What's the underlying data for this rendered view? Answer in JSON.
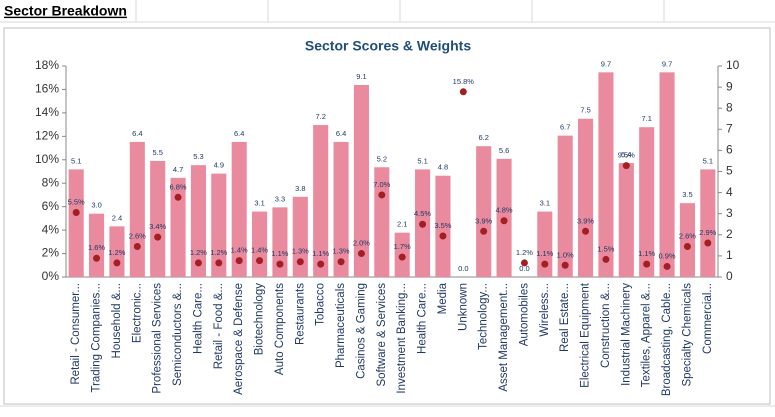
{
  "sheet_title": "Sector Breakdown",
  "chart_data": {
    "type": "bar-scatter",
    "title": "Sector Scores & Weights",
    "categories": [
      "Retail - Consumer...",
      "Trading Companies...",
      "Household &...",
      "Electronic...",
      "Professional Services",
      "Semiconductors &...",
      "Health Care...",
      "Retail - Food &...",
      "Aerospace & Defense",
      "Biotechnology",
      "Auto Components",
      "Restaurants",
      "Tobacco",
      "Pharmaceuticals",
      "Casinos & Gaming",
      "Software & Services",
      "Investment Banking...",
      "Health Care...",
      "Media",
      "Unknown",
      "Technology...",
      "Asset Management...",
      "Automobiles",
      "Wireless...",
      "Real Estate...",
      "Electrical Equipment",
      "Construction &...",
      "Industrial Machinery",
      "Textiles, Apparel &...",
      "Broadcasting, Cable...",
      "Specialty Chemicals",
      "Commercial..."
    ],
    "series": [
      {
        "type": "bar",
        "axis": "y2",
        "color": "#e98a9e",
        "values": [
          5.1,
          3.0,
          2.4,
          6.4,
          5.5,
          4.7,
          5.3,
          4.9,
          6.4,
          3.1,
          3.3,
          3.8,
          7.2,
          6.4,
          9.1,
          5.2,
          2.1,
          5.1,
          4.8,
          0.0,
          6.2,
          5.6,
          0.0,
          3.1,
          6.7,
          7.5,
          9.7,
          5.4,
          7.1,
          9.7,
          3.5,
          5.1
        ],
        "value_labels": [
          "5.1",
          "3.0",
          "2.4",
          "6.4",
          "5.5",
          "4.7",
          "5.3",
          "4.9",
          "6.4",
          "3.1",
          "3.3",
          "3.8",
          "7.2",
          "6.4",
          "9.1",
          "5.2",
          "2.1",
          "5.1",
          "4.8",
          "0.0",
          "6.2",
          "5.6",
          "0.0",
          "3.1",
          "6.7",
          "7.5",
          "9.7",
          "5.4",
          "7.1",
          "9.7",
          "3.5",
          "5.1"
        ]
      },
      {
        "type": "scatter",
        "axis": "y",
        "color": "#a31f24",
        "values": [
          5.5,
          1.6,
          1.2,
          2.6,
          3.4,
          6.8,
          1.2,
          1.2,
          1.4,
          1.4,
          1.1,
          1.3,
          1.1,
          1.3,
          2.0,
          7.0,
          1.7,
          4.5,
          3.5,
          15.8,
          3.9,
          4.8,
          1.2,
          1.1,
          1.0,
          3.9,
          1.5,
          9.5,
          1.1,
          0.9,
          2.6,
          2.9
        ],
        "value_labels": [
          "5.5%",
          "1.6%",
          "1.2%",
          "2.6%",
          "3.4%",
          "6.8%",
          "1.2%",
          "1.2%",
          "1.4%",
          "1.4%",
          "1.1%",
          "1.3%",
          "1.1%",
          "1.3%",
          "2.0%",
          "7.0%",
          "1.7%",
          "4.5%",
          "3.5%",
          "15.8%",
          "3.9%",
          "4.8%",
          "1.2%",
          "1.1%",
          "1.0%",
          "3.9%",
          "1.5%",
          "9.5%",
          "1.1%",
          "0.9%",
          "2.6%",
          "2.9%"
        ]
      }
    ],
    "ylim": [
      0,
      18
    ],
    "yticks": [
      {
        "value": 0,
        "label": "0%"
      },
      {
        "value": 2,
        "label": "2%"
      },
      {
        "value": 4,
        "label": "4%"
      },
      {
        "value": 6,
        "label": "6%"
      },
      {
        "value": 8,
        "label": "8%"
      },
      {
        "value": 10,
        "label": "10%"
      },
      {
        "value": 12,
        "label": "12%"
      },
      {
        "value": 14,
        "label": "14%"
      },
      {
        "value": 16,
        "label": "16%"
      },
      {
        "value": 18,
        "label": "18%"
      }
    ],
    "y2lim": [
      0,
      10
    ],
    "y2ticks": [
      0,
      1,
      2,
      3,
      4,
      5,
      6,
      7,
      8,
      9,
      10
    ],
    "grid": false
  }
}
